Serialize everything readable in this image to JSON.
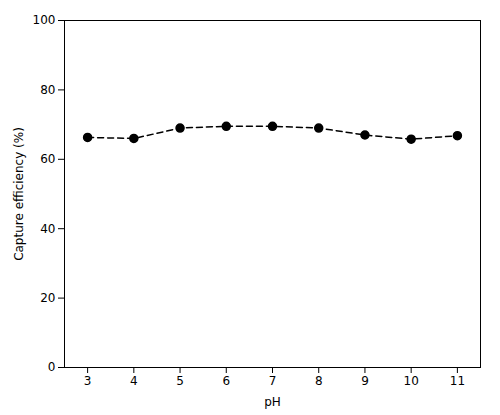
{
  "chart_data": {
    "type": "line",
    "x": [
      3,
      4,
      5,
      6,
      7,
      8,
      9,
      10,
      11
    ],
    "values": [
      66.3,
      66.0,
      69.0,
      69.5,
      69.5,
      69.0,
      67.0,
      65.8,
      66.8
    ],
    "xlabel": "pH",
    "ylabel": "Capture efficiency (%)",
    "xlim": [
      2.5,
      11.5
    ],
    "ylim": [
      0,
      100
    ],
    "xticks": [
      3,
      4,
      5,
      6,
      7,
      8,
      9,
      10,
      11
    ],
    "yticks": [
      0,
      20,
      40,
      60,
      80,
      100
    ],
    "color": "#000000",
    "marker": "circle",
    "line_style": "dashed",
    "grid": false
  }
}
